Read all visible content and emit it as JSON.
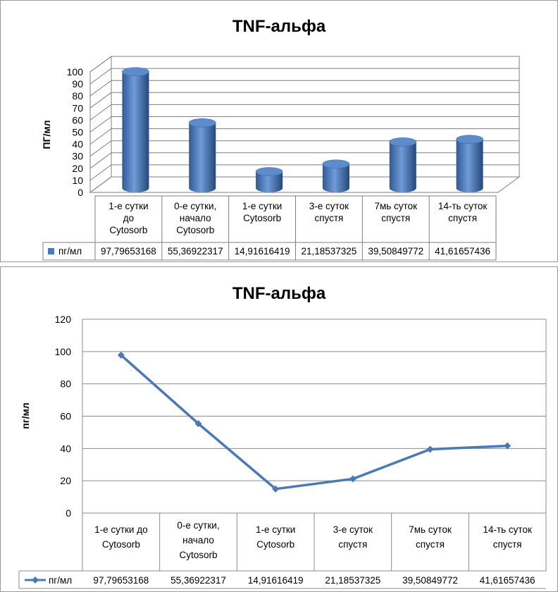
{
  "chart_data": [
    {
      "type": "bar",
      "style": "3d-cylinder",
      "title": "TNF-альфа",
      "ylabel": "ПГ/мл",
      "ylim": [
        0,
        100
      ],
      "yticks": [
        "0",
        "10",
        "20",
        "30",
        "40",
        "50",
        "60",
        "70",
        "80",
        "90",
        "100"
      ],
      "categories": [
        [
          "1-е сутки",
          "до",
          "Cytosorb"
        ],
        [
          "0-е сутки,",
          "начало",
          "Cytosorb"
        ],
        [
          "1-е сутки",
          "Cytosorb"
        ],
        [
          "3-е суток",
          "спустя"
        ],
        [
          "7мь суток",
          "спустя"
        ],
        [
          "14-ть суток",
          "спустя"
        ]
      ],
      "series": [
        {
          "name": "пг/мл",
          "values": [
            97.79653168,
            55.36922317,
            14.91616419,
            21.18537325,
            39.50849772,
            41.61657436
          ],
          "value_labels": [
            "97,79653168",
            "55,36922317",
            "14,91616419",
            "21,18537325",
            "39,50849772",
            "41,61657436"
          ],
          "color": "#4a78b8"
        }
      ],
      "grid": true,
      "legend": "data-table"
    },
    {
      "type": "line",
      "title": "TNF-альфа",
      "ylabel": "пг/мл",
      "ylim": [
        0,
        120
      ],
      "yticks": [
        "0",
        "20",
        "40",
        "60",
        "80",
        "100",
        "120"
      ],
      "categories": [
        [
          "1-е сутки до",
          "Cytosorb"
        ],
        [
          "0-е сутки,",
          "начало",
          "Cytosorb"
        ],
        [
          "1-е сутки",
          "Cytosorb"
        ],
        [
          "3-е суток",
          "спустя"
        ],
        [
          "7мь суток",
          "спустя"
        ],
        [
          "14-ть суток",
          "спустя"
        ]
      ],
      "series": [
        {
          "name": "пг/мл",
          "values": [
            97.79653168,
            55.36922317,
            14.91616419,
            21.18537325,
            39.50849772,
            41.61657436
          ],
          "value_labels": [
            "97,79653168",
            "55,36922317",
            "14,91616419",
            "21,18537325",
            "39,50849772",
            "41,61657436"
          ],
          "color": "#4a78b8"
        }
      ],
      "grid": true,
      "legend": "data-table"
    }
  ]
}
